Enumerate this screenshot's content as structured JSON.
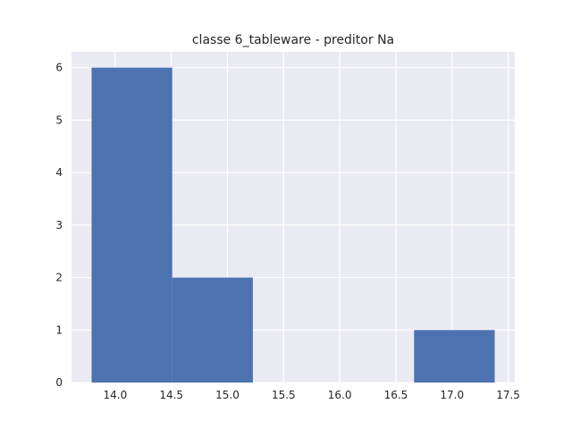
{
  "chart_data": {
    "type": "bar",
    "title": "classe 6_tableware - preditor Na",
    "xlabel": "",
    "ylabel": "",
    "bins": [
      {
        "x0": 13.79,
        "x1": 14.508,
        "count": 6
      },
      {
        "x0": 14.508,
        "x1": 15.226,
        "count": 2
      },
      {
        "x0": 15.226,
        "x1": 15.944,
        "count": 0
      },
      {
        "x0": 15.944,
        "x1": 16.662,
        "count": 0
      },
      {
        "x0": 16.662,
        "x1": 17.38,
        "count": 1
      }
    ],
    "xlim": [
      13.611,
      17.559
    ],
    "ylim": [
      0,
      6.3
    ],
    "xticks": [
      "14.0",
      "14.5",
      "15.0",
      "15.5",
      "16.0",
      "16.5",
      "17.0",
      "17.5"
    ],
    "yticks": [
      "0",
      "1",
      "2",
      "3",
      "4",
      "5",
      "6"
    ],
    "grid": true,
    "colors": {
      "bar": "#4c72b0",
      "plot_background": "#eaeaf2",
      "grid": "#ffffff",
      "text": "#262626"
    }
  }
}
